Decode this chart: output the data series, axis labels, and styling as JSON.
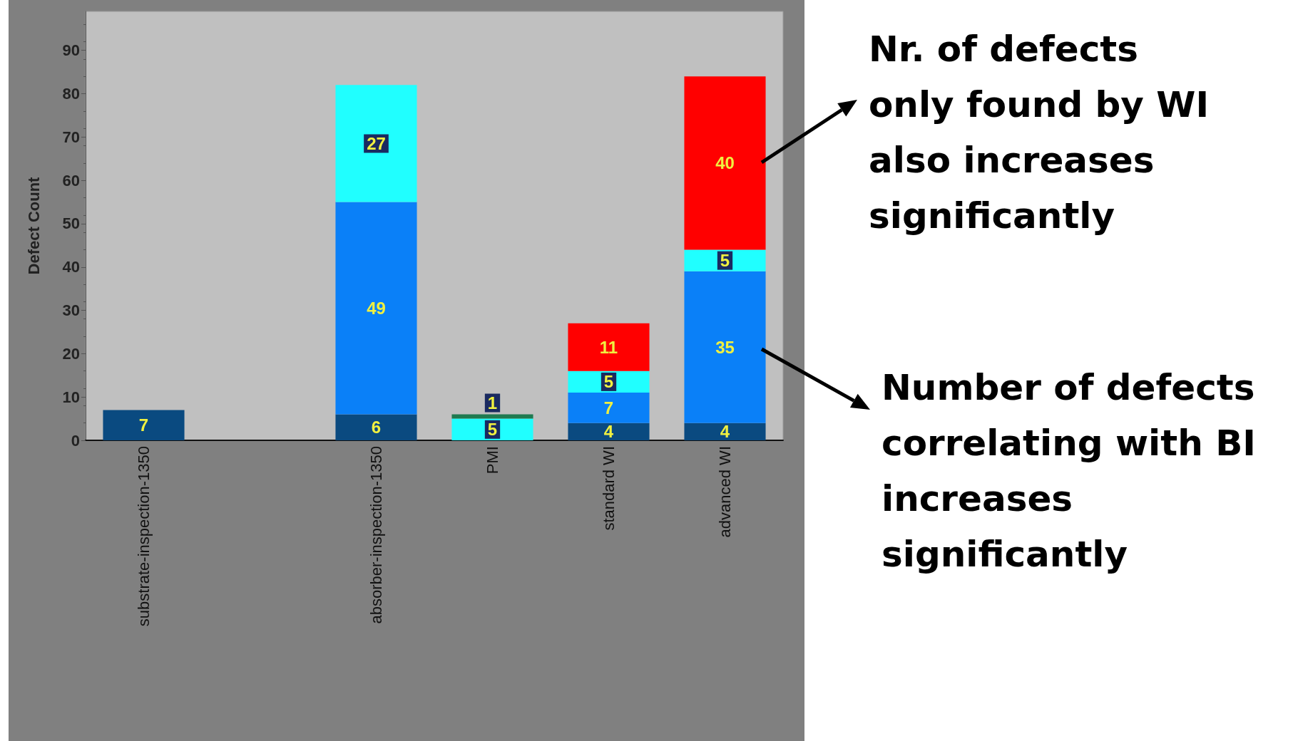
{
  "chart_data": {
    "type": "bar",
    "stacked": true,
    "ylabel": "Defect Count",
    "categories": [
      "substrate-inspection-1350",
      null,
      "absorber-inspection-1350",
      "PMI",
      "standard WI",
      "advanced WI"
    ],
    "series": [
      {
        "color": "#0a4a80",
        "values": [
          7,
          null,
          6,
          null,
          4,
          4
        ]
      },
      {
        "color": "#0a80f8",
        "values": [
          null,
          null,
          49,
          null,
          7,
          35
        ]
      },
      {
        "color": "#20ffff",
        "values": [
          null,
          null,
          27,
          5,
          5,
          5
        ]
      },
      {
        "color": "#1f7a50",
        "values": [
          null,
          null,
          null,
          1,
          null,
          null
        ]
      },
      {
        "color": "#ff0000",
        "values": [
          null,
          null,
          null,
          null,
          11,
          40
        ]
      }
    ],
    "ylim": [
      0,
      99
    ],
    "yticks": [
      0,
      10,
      20,
      30,
      40,
      50,
      60,
      70,
      80,
      90
    ],
    "grid": false,
    "data_labels": true,
    "annotations": [
      "Nr. of defects only found by WI also increases significantly",
      "Number of defects correlating with BI increases significantly"
    ]
  }
}
